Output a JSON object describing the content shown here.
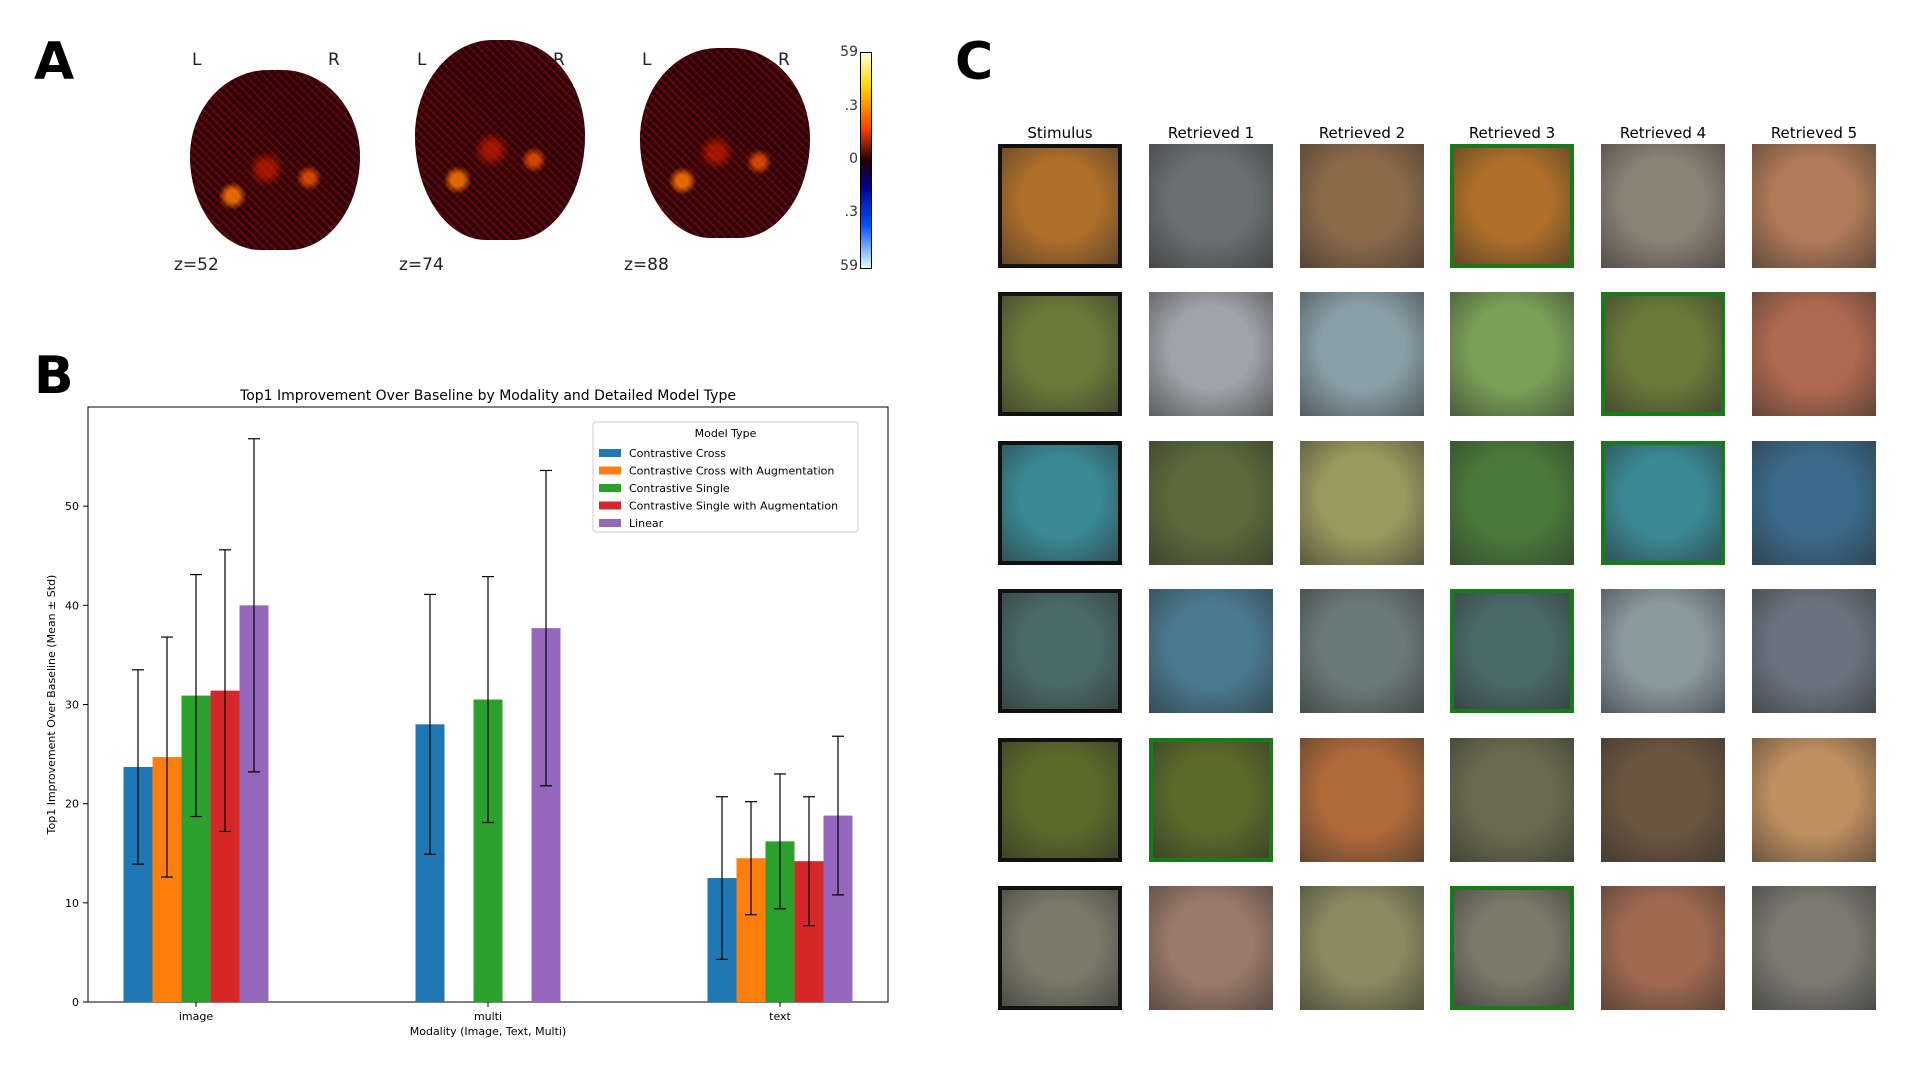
{
  "panels": {
    "a": "A",
    "b": "B",
    "c": "C"
  },
  "brain": {
    "slices": [
      {
        "left": "L",
        "right": "R",
        "z": "z=52"
      },
      {
        "left": "L",
        "right": "R",
        "z": "z=74"
      },
      {
        "left": "L",
        "right": "R",
        "z": "z=88"
      }
    ],
    "colorbar_ticks": [
      "59",
      ".3",
      "0",
      ".3",
      "59"
    ]
  },
  "chart_data": {
    "type": "bar",
    "title": "Top1 Improvement Over Baseline by Modality and Detailed Model Type",
    "xlabel": "Modality (Image, Text, Multi)",
    "ylabel": "Top1 Improvement Over Baseline (Mean ± Std)",
    "ylim": [
      0,
      60
    ],
    "yticks": [
      0,
      10,
      20,
      30,
      40,
      50
    ],
    "categories": [
      "image",
      "multi",
      "text"
    ],
    "legend_title": "Model Type",
    "legend_position": "top-right",
    "series": [
      {
        "name": "Contrastive Cross",
        "color": "#1f77b4",
        "values": [
          23.7,
          28.0,
          12.5
        ],
        "errors": [
          9.8,
          13.1,
          8.2
        ]
      },
      {
        "name": "Contrastive Cross with Augmentation",
        "color": "#ff7f0e",
        "values": [
          24.7,
          null,
          14.5
        ],
        "errors": [
          12.1,
          null,
          5.7
        ]
      },
      {
        "name": "Contrastive Single",
        "color": "#2ca02c",
        "values": [
          30.9,
          30.5,
          16.2
        ],
        "errors": [
          12.2,
          12.4,
          6.8
        ]
      },
      {
        "name": "Contrastive Single with Augmentation",
        "color": "#d62728",
        "values": [
          31.4,
          null,
          14.2
        ],
        "errors": [
          14.2,
          null,
          6.5
        ]
      },
      {
        "name": "Linear",
        "color": "#9467bd",
        "values": [
          40.0,
          37.7,
          18.8
        ],
        "errors": [
          16.8,
          15.9,
          8.0
        ]
      }
    ]
  },
  "retrieval": {
    "columns": [
      "Stimulus",
      "Retrieved 1",
      "Retrieved 2",
      "Retrieved 3",
      "Retrieved 4",
      "Retrieved 5"
    ],
    "rows": [
      {
        "match": 3,
        "colors": [
          "#b0702a",
          "#6a6f70",
          "#8b6a4a",
          "#b0702a",
          "#8a8275",
          "#b07a58"
        ]
      },
      {
        "match": 4,
        "colors": [
          "#6a7a3a",
          "#a0a3a8",
          "#8aa0a8",
          "#7aa058",
          "#6a7a3a",
          "#b06a50"
        ]
      },
      {
        "match": 4,
        "colors": [
          "#3a8a95",
          "#5a6a3a",
          "#9a9a60",
          "#4a7a3a",
          "#3a8a95",
          "#3a6a8a"
        ]
      },
      {
        "match": 3,
        "colors": [
          "#4a6a68",
          "#4a7a90",
          "#6a7a78",
          "#4a6a68",
          "#8a98a0",
          "#6a7480"
        ]
      },
      {
        "match": 1,
        "colors": [
          "#5a6a2a",
          "#5a6a2a",
          "#b06a3a",
          "#6a6a50",
          "#6a5540",
          "#c09060"
        ]
      },
      {
        "match": 3,
        "colors": [
          "#7a7a6a",
          "#9a7a6a",
          "#8a8a60",
          "#7a7a6a",
          "#a06a50",
          "#7a7a70"
        ]
      }
    ]
  }
}
